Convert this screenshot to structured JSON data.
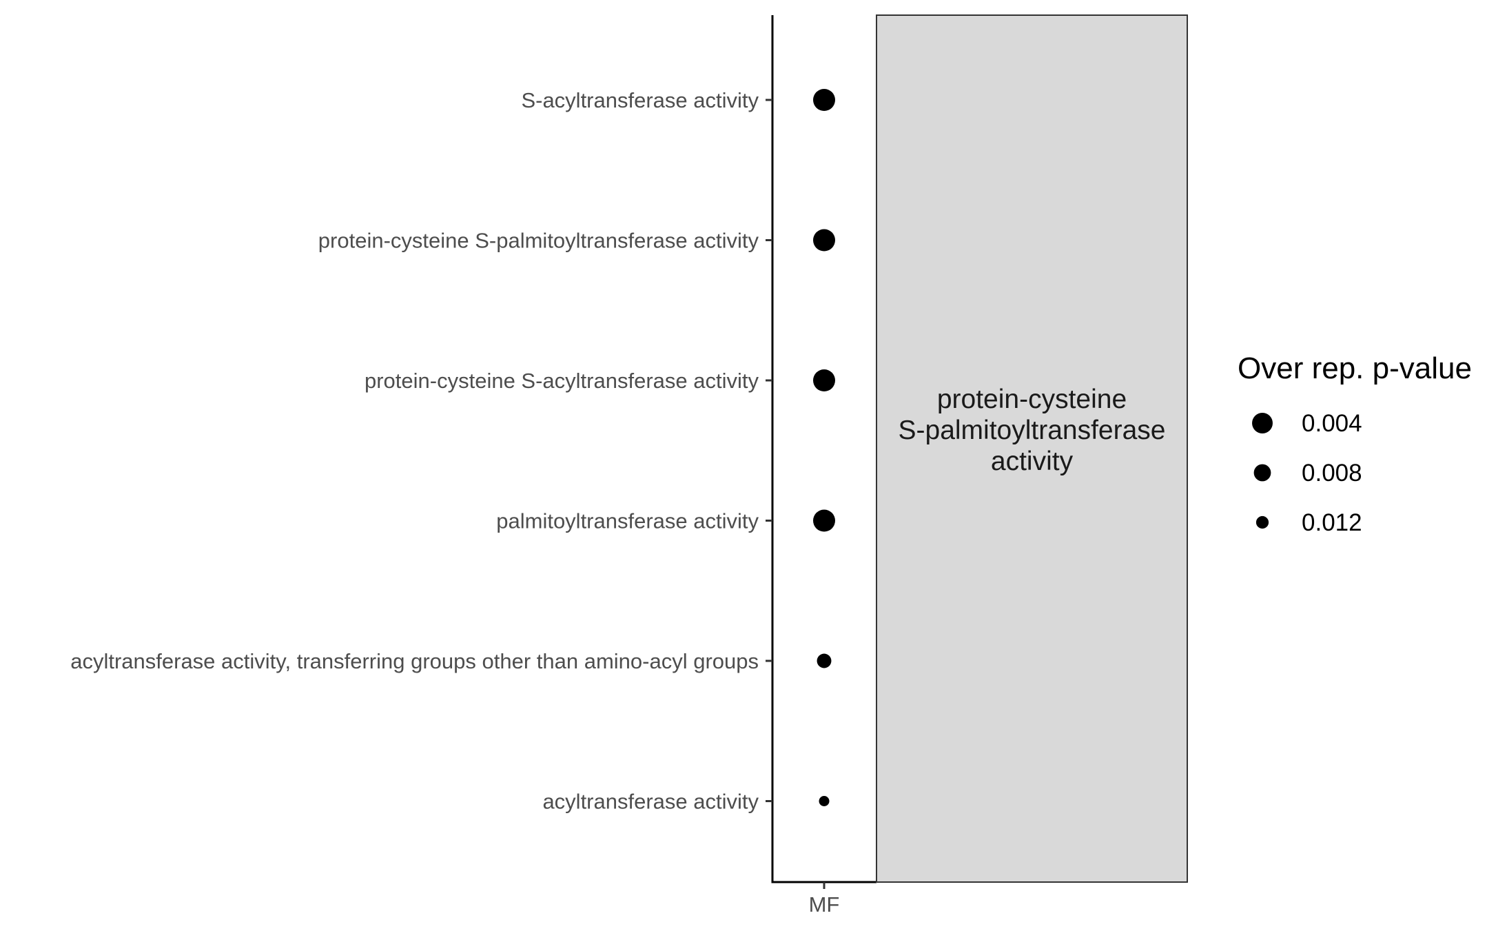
{
  "chart_data": {
    "type": "scatter",
    "title": "",
    "xlabel": "",
    "ylabel": "",
    "x_categories": [
      "MF"
    ],
    "categories": [
      "S-acyltransferase activity",
      "protein-cysteine S-palmitoyltransferase activity",
      "protein-cysteine S-acyltransferase activity",
      "palmitoyltransferase activity",
      "acyltransferase activity, transferring groups other than amino-acyl groups",
      "acyltransferase activity"
    ],
    "points": [
      {
        "x": "MF",
        "y": "S-acyltransferase activity",
        "p_value": 0.0022
      },
      {
        "x": "MF",
        "y": "protein-cysteine S-palmitoyltransferase activity",
        "p_value": 0.0022
      },
      {
        "x": "MF",
        "y": "protein-cysteine S-acyltransferase activity",
        "p_value": 0.0022
      },
      {
        "x": "MF",
        "y": "palmitoyltransferase activity",
        "p_value": 0.0022
      },
      {
        "x": "MF",
        "y": "acyltransferase activity, transferring groups other than amino-acyl groups",
        "p_value": 0.0105
      },
      {
        "x": "MF",
        "y": "acyltransferase activity",
        "p_value": 0.0135
      }
    ],
    "facet_strip": {
      "lines": [
        "protein-cysteine",
        "S-palmitoyltransferase",
        "activity"
      ],
      "fill": "#d9d9d9",
      "stroke": "#333333"
    },
    "point_color": "#000000",
    "legend": {
      "title": "Over rep. p-value",
      "position": "right",
      "entries": [
        {
          "label": "0.004",
          "value": 0.004
        },
        {
          "label": "0.008",
          "value": 0.008
        },
        {
          "label": "0.012",
          "value": 0.012
        }
      ]
    },
    "grid": false
  }
}
